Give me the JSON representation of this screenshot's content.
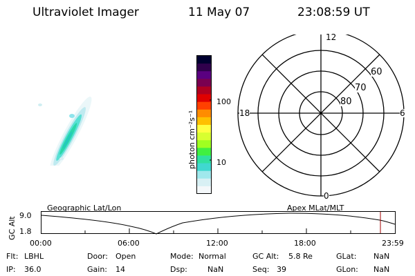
{
  "header": {
    "title": "Ultraviolet Imager",
    "date": "11 May 07",
    "time": "23:08:59 UT"
  },
  "colorbar": {
    "unit_label": "photon cm⁻²s⁻¹",
    "tick_labels": [
      "100",
      "10"
    ],
    "colors": [
      "#000030",
      "#30004c",
      "#5a0080",
      "#7a0050",
      "#b00020",
      "#e00000",
      "#ff4000",
      "#ff8c00",
      "#ffc000",
      "#ffff40",
      "#d8ff30",
      "#a0ff20",
      "#40f040",
      "#30e0a0",
      "#40d8d0",
      "#a0e8ec",
      "#d8f0f4",
      "#f4f8fa"
    ]
  },
  "polar": {
    "mlt_labels": [
      "12",
      "18",
      "6",
      "0"
    ],
    "lat_labels": [
      "60",
      "70",
      "80"
    ]
  },
  "timeline": {
    "y_label": "GC Alt",
    "y_max": "9.0",
    "y_min": "1.8",
    "left_label": "Geographic Lat/Lon",
    "right_label": "Apex MLat/MLT",
    "ticks": [
      "00:00",
      "06:00",
      "12:00",
      "18:00",
      "23:59"
    ],
    "marker_color": "#a00000"
  },
  "status": {
    "flt": {
      "label": "Flt:",
      "value": "LBHL"
    },
    "ip": {
      "label": "IP:",
      "value": "36.0"
    },
    "door": {
      "label": "Door:",
      "value": "Open"
    },
    "gain": {
      "label": "Gain:",
      "value": "14"
    },
    "mode": {
      "label": "Mode:",
      "value": "Normal"
    },
    "dsp": {
      "label": "Dsp:",
      "value": "NaN"
    },
    "gcalt": {
      "label": "GC Alt:",
      "value": "5.8 Re"
    },
    "seq": {
      "label": "Seq:",
      "value": "39"
    },
    "glat": {
      "label": "GLat:",
      "value": "NaN"
    },
    "glon": {
      "label": "GLon:",
      "value": "NaN"
    }
  }
}
